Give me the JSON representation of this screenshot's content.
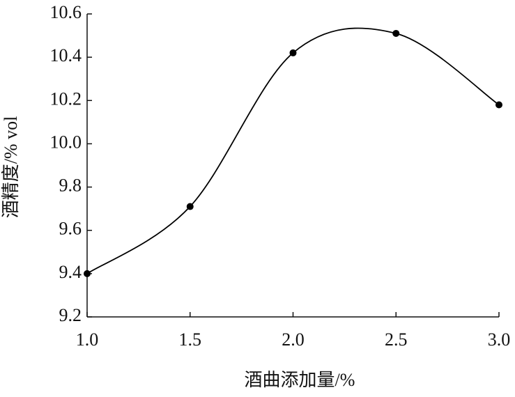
{
  "chart_data": {
    "type": "line",
    "xlabel": "酒曲添加量/%",
    "ylabel": "酒精度/% vol",
    "x": [
      1.0,
      1.5,
      2.0,
      2.5,
      3.0
    ],
    "series": [
      {
        "color": "#000000",
        "values": [
          9.4,
          9.71,
          10.42,
          10.51,
          10.18
        ]
      }
    ],
    "xlim": [
      1,
      3
    ],
    "xticks": [
      {
        "value": 1,
        "label": "1.0"
      },
      1.5,
      {
        "value": 2,
        "label": "2.0"
      },
      2.5,
      {
        "value": 3,
        "label": "3.0"
      }
    ],
    "ylim": [
      9.2,
      10.6
    ],
    "yticks": [
      9.2,
      9.4,
      9.6,
      9.8,
      {
        "value": 10,
        "label": "10.0"
      },
      10.2,
      10.4,
      10.6
    ],
    "grid": false
  }
}
